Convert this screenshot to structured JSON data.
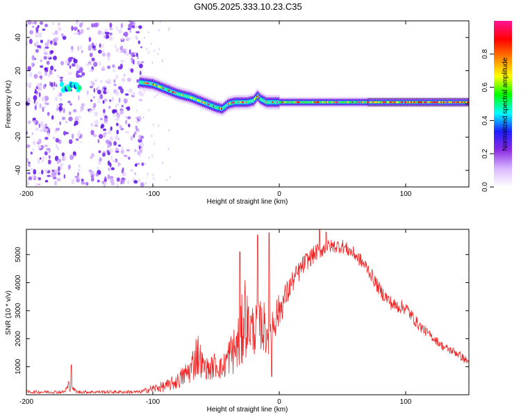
{
  "title": "GN05.2025.333.10.23.C35",
  "chart_data": [
    {
      "type": "heatmap",
      "name": "frequency-vs-height",
      "xlabel": "Height of straight line (km)",
      "ylabel": "Frequency (Hz)",
      "xlim": [
        -200,
        150
      ],
      "ylim": [
        -50,
        50
      ],
      "xticks": [
        -200,
        -100,
        0,
        100
      ],
      "yticks": [
        -40,
        -20,
        0,
        20,
        40
      ],
      "colorbar": {
        "label": "Normalized spectral amplitude",
        "range": [
          0,
          1
        ],
        "ticks": [
          "0.0",
          "0.2",
          "0.4",
          "0.6",
          "0.8"
        ],
        "colors": [
          "#ffffff",
          "#d9b8ff",
          "#8a2be2",
          "#1e1eff",
          "#00ffff",
          "#00ff00",
          "#ffff00",
          "#ff8000",
          "#ff0000",
          "#ff1493"
        ]
      },
      "noise_region_km": [
        -200,
        -108
      ],
      "ridge": {
        "x": [
          -170,
          -165,
          -160,
          -110,
          -100,
          -90,
          -80,
          -70,
          -60,
          -50,
          -45,
          -40,
          -35,
          -30,
          -25,
          -20,
          -17,
          -15,
          -10,
          -5,
          0,
          20,
          50,
          70,
          90,
          100,
          120,
          150
        ],
        "y": [
          10,
          11,
          10,
          13,
          12,
          9,
          6,
          4,
          1,
          -2,
          -3,
          0,
          1,
          1,
          1,
          2,
          5,
          3,
          1,
          1,
          1,
          1,
          1,
          1,
          1,
          1,
          1,
          1
        ]
      },
      "band_start_km": 70
    },
    {
      "type": "line",
      "name": "snr-vs-height",
      "xlabel": "Height of straight line (km)",
      "ylabel": "SNR (10 * v/v)",
      "xlim": [
        -200,
        150
      ],
      "ylim": [
        0,
        5900
      ],
      "xticks": [
        -200,
        -100,
        0,
        100
      ],
      "yticks": [
        1000,
        2000,
        3000,
        4000,
        5000
      ],
      "color": "#ee2222",
      "envelope": {
        "x": [
          -200,
          -170,
          -166,
          -164,
          -160,
          -110,
          -100,
          -90,
          -80,
          -70,
          -65,
          -60,
          -55,
          -50,
          -45,
          -40,
          -35,
          -30,
          -28,
          -25,
          -20,
          -15,
          -10,
          -5,
          0,
          10,
          20,
          30,
          40,
          50,
          60,
          70,
          75,
          80,
          90,
          100,
          110,
          120,
          130,
          140,
          150
        ],
        "mean": [
          100,
          100,
          350,
          250,
          100,
          100,
          220,
          300,
          500,
          900,
          1500,
          1000,
          900,
          1100,
          900,
          1400,
          1600,
          2000,
          3000,
          2500,
          2300,
          2500,
          2300,
          2600,
          3000,
          4000,
          4700,
          5100,
          5300,
          5300,
          5000,
          4500,
          4100,
          3700,
          3200,
          3100,
          2500,
          2100,
          1700,
          1500,
          1150
        ],
        "amp": [
          60,
          60,
          250,
          80,
          60,
          60,
          150,
          200,
          300,
          500,
          900,
          400,
          400,
          500,
          400,
          700,
          900,
          1200,
          1900,
          1000,
          900,
          900,
          1000,
          800,
          600,
          400,
          350,
          300,
          250,
          250,
          250,
          250,
          250,
          250,
          250,
          250,
          200,
          150,
          150,
          150,
          150
        ]
      },
      "spikes": [
        {
          "x": -164.5,
          "y": 1060
        },
        {
          "x": -31,
          "y": 5100
        },
        {
          "x": -17,
          "y": 5700
        },
        {
          "x": -8,
          "y": 5780
        },
        {
          "x": -6,
          "y": 650
        },
        {
          "x": 32,
          "y": 5900
        },
        {
          "x": 37,
          "y": 5800
        }
      ]
    }
  ]
}
